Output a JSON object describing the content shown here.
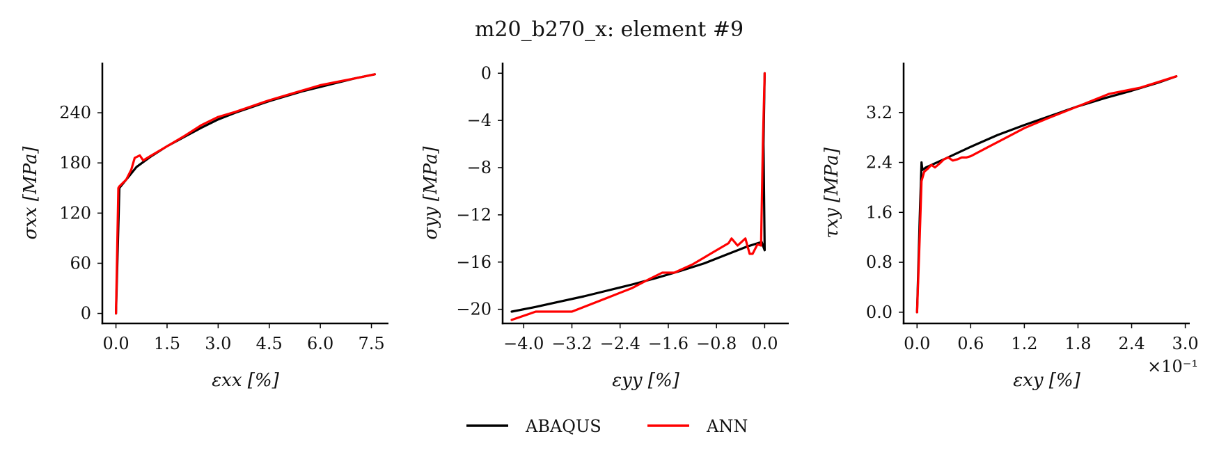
{
  "title": "m20_b270_x: element #9",
  "legend": {
    "placement": "bottom-center",
    "entries": [
      {
        "name": "ABAQUS",
        "color": "#000000"
      },
      {
        "name": "ANN",
        "color": "#ff0000"
      }
    ]
  },
  "chart_data": [
    {
      "type": "line",
      "xlabel": "εxx [%]",
      "ylabel": "σxx [MPa]",
      "xlim": [
        -0.4,
        8.0
      ],
      "ylim": [
        -12,
        300
      ],
      "xticks": [
        "0.0",
        "1.5",
        "3.0",
        "4.5",
        "6.0",
        "7.5"
      ],
      "xtick_values": [
        0,
        1.5,
        3.0,
        4.5,
        6.0,
        7.5
      ],
      "yticks": [
        "0",
        "60",
        "120",
        "180",
        "240"
      ],
      "ytick_values": [
        0,
        60,
        120,
        180,
        240
      ],
      "exponent": "",
      "grid": false,
      "series": [
        {
          "name": "ABAQUS",
          "color": "#000000",
          "x": [
            0.0,
            0.1,
            0.3,
            0.6,
            1.0,
            1.5,
            2.0,
            2.5,
            3.0,
            3.5,
            4.0,
            4.5,
            5.0,
            5.5,
            6.0,
            6.5,
            7.0,
            7.6
          ],
          "y": [
            0,
            150,
            160,
            175,
            187,
            200,
            211,
            222,
            232,
            240,
            247,
            254,
            260,
            266,
            271,
            276,
            281,
            286
          ]
        },
        {
          "name": "ANN",
          "color": "#ff0000",
          "x": [
            0.0,
            0.07,
            0.1,
            0.3,
            0.45,
            0.55,
            0.7,
            0.8,
            1.0,
            1.5,
            2.0,
            2.5,
            3.0,
            3.5,
            4.0,
            4.5,
            5.0,
            5.5,
            6.0,
            6.5,
            7.0,
            7.6
          ],
          "y": [
            0,
            150,
            152,
            160,
            172,
            186,
            189,
            183,
            188,
            200,
            212,
            225,
            235,
            241,
            248,
            255,
            261,
            267,
            273,
            277,
            281,
            286
          ]
        }
      ]
    },
    {
      "type": "line",
      "xlabel": "εyy [%]",
      "ylabel": "σyy [MPa]",
      "xlim": [
        -4.35,
        0.4
      ],
      "ylim": [
        -21.2,
        0.9
      ],
      "xticks": [
        "−4.0",
        "−3.2",
        "−2.4",
        "−1.6",
        "−0.8",
        "0.0"
      ],
      "xtick_values": [
        -4.0,
        -3.2,
        -2.4,
        -1.6,
        -0.8,
        0.0
      ],
      "yticks": [
        "0",
        "−4",
        "−8",
        "−12",
        "−16",
        "−20"
      ],
      "ytick_values": [
        0,
        -4,
        -8,
        -12,
        -16,
        -20
      ],
      "exponent": "",
      "grid": false,
      "series": [
        {
          "name": "ABAQUS",
          "color": "#000000",
          "x": [
            -4.2,
            -3.8,
            -3.4,
            -3.0,
            -2.6,
            -2.2,
            -1.8,
            -1.4,
            -1.0,
            -0.6,
            -0.3,
            -0.05,
            0.0,
            -0.02,
            0.0
          ],
          "y": [
            -20.2,
            -19.8,
            -19.35,
            -18.9,
            -18.4,
            -17.9,
            -17.35,
            -16.75,
            -16.1,
            -15.3,
            -14.7,
            -14.3,
            -15.0,
            -6.0,
            0.0
          ]
        },
        {
          "name": "ANN",
          "color": "#ff0000",
          "x": [
            -4.2,
            -3.8,
            -3.2,
            -2.6,
            -2.2,
            -1.9,
            -1.7,
            -1.5,
            -1.2,
            -0.9,
            -0.6,
            -0.55,
            -0.45,
            -0.32,
            -0.25,
            -0.2,
            -0.12,
            -0.06,
            -0.03,
            0.0
          ],
          "y": [
            -20.9,
            -20.2,
            -20.2,
            -19.0,
            -18.2,
            -17.4,
            -16.9,
            -16.9,
            -16.2,
            -15.3,
            -14.4,
            -14.0,
            -14.6,
            -14.0,
            -15.3,
            -15.3,
            -14.5,
            -14.6,
            -6.0,
            0.0
          ]
        }
      ]
    },
    {
      "type": "line",
      "xlabel": "εxy [%]",
      "ylabel": "τxy [MPa]",
      "xlim": [
        -0.15,
        3.05
      ],
      "ylim": [
        -0.18,
        4.0
      ],
      "xticks": [
        "0.0",
        "0.6",
        "1.2",
        "1.8",
        "2.4",
        "3.0"
      ],
      "xtick_values": [
        0,
        0.6,
        1.2,
        1.8,
        2.4,
        3.0
      ],
      "yticks": [
        "0.0",
        "0.8",
        "1.6",
        "2.4",
        "3.2"
      ],
      "ytick_values": [
        0,
        0.8,
        1.6,
        2.4,
        3.2
      ],
      "exponent": "×10⁻¹",
      "grid": false,
      "series": [
        {
          "name": "ABAQUS",
          "color": "#000000",
          "x": [
            0.0,
            0.03,
            0.05,
            0.06,
            0.1,
            0.3,
            0.6,
            0.9,
            1.2,
            1.5,
            1.8,
            2.1,
            2.4,
            2.7,
            2.9
          ],
          "y": [
            0,
            1.5,
            2.4,
            2.28,
            2.32,
            2.45,
            2.65,
            2.84,
            3.0,
            3.15,
            3.3,
            3.43,
            3.55,
            3.68,
            3.78
          ]
        },
        {
          "name": "ANN",
          "color": "#ff0000",
          "x": [
            0.0,
            0.03,
            0.05,
            0.08,
            0.12,
            0.16,
            0.2,
            0.25,
            0.3,
            0.35,
            0.4,
            0.45,
            0.5,
            0.55,
            0.6,
            0.8,
            1.0,
            1.2,
            1.45,
            1.8,
            2.15,
            2.5,
            2.9
          ],
          "y": [
            0,
            1.2,
            2.1,
            2.25,
            2.3,
            2.36,
            2.32,
            2.38,
            2.45,
            2.48,
            2.43,
            2.45,
            2.48,
            2.48,
            2.5,
            2.65,
            2.8,
            2.95,
            3.1,
            3.3,
            3.5,
            3.6,
            3.78
          ]
        }
      ]
    }
  ]
}
